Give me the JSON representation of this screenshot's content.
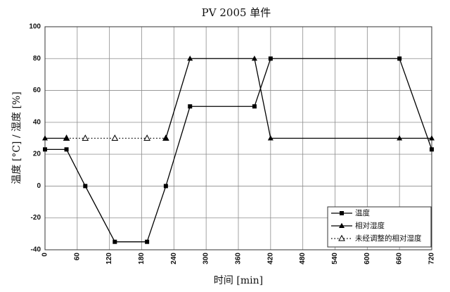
{
  "chart_data": {
    "type": "line",
    "title": "PV 2005 单件",
    "xlabel": "时间 [min]",
    "ylabel": "温度 [°C] / 湿度 [%]",
    "xlim": [
      0,
      720
    ],
    "ylim": [
      -40,
      100
    ],
    "xticks": [
      0,
      60,
      120,
      180,
      240,
      300,
      360,
      420,
      480,
      540,
      600,
      660,
      720
    ],
    "yticks": [
      -40,
      -20,
      0,
      20,
      40,
      60,
      80,
      100
    ],
    "grid": true,
    "legend_position": "bottom-right",
    "series": [
      {
        "name": "温度",
        "marker": "square",
        "line": "solid",
        "color": "#000000",
        "points": [
          [
            0,
            23
          ],
          [
            40,
            23
          ],
          [
            75,
            0
          ],
          [
            130,
            -35
          ],
          [
            190,
            -35
          ],
          [
            225,
            0
          ],
          [
            270,
            50
          ],
          [
            390,
            50
          ],
          [
            420,
            80
          ],
          [
            660,
            80
          ],
          [
            720,
            23
          ]
        ]
      },
      {
        "name": "相对湿度",
        "marker": "triangle",
        "line": "solid",
        "color": "#000000",
        "points": [
          [
            0,
            30
          ],
          [
            40,
            30
          ],
          null,
          [
            225,
            30
          ],
          [
            270,
            80
          ],
          [
            390,
            80
          ],
          [
            420,
            30
          ],
          [
            660,
            30
          ],
          [
            720,
            30
          ]
        ]
      },
      {
        "name": "未经调整的相对湿度",
        "marker": "open-triangle",
        "line": "dotted",
        "color": "#000000",
        "points": [
          [
            40,
            30
          ],
          [
            75,
            30
          ],
          [
            130,
            30
          ],
          [
            190,
            30
          ],
          [
            225,
            30
          ]
        ]
      }
    ]
  }
}
